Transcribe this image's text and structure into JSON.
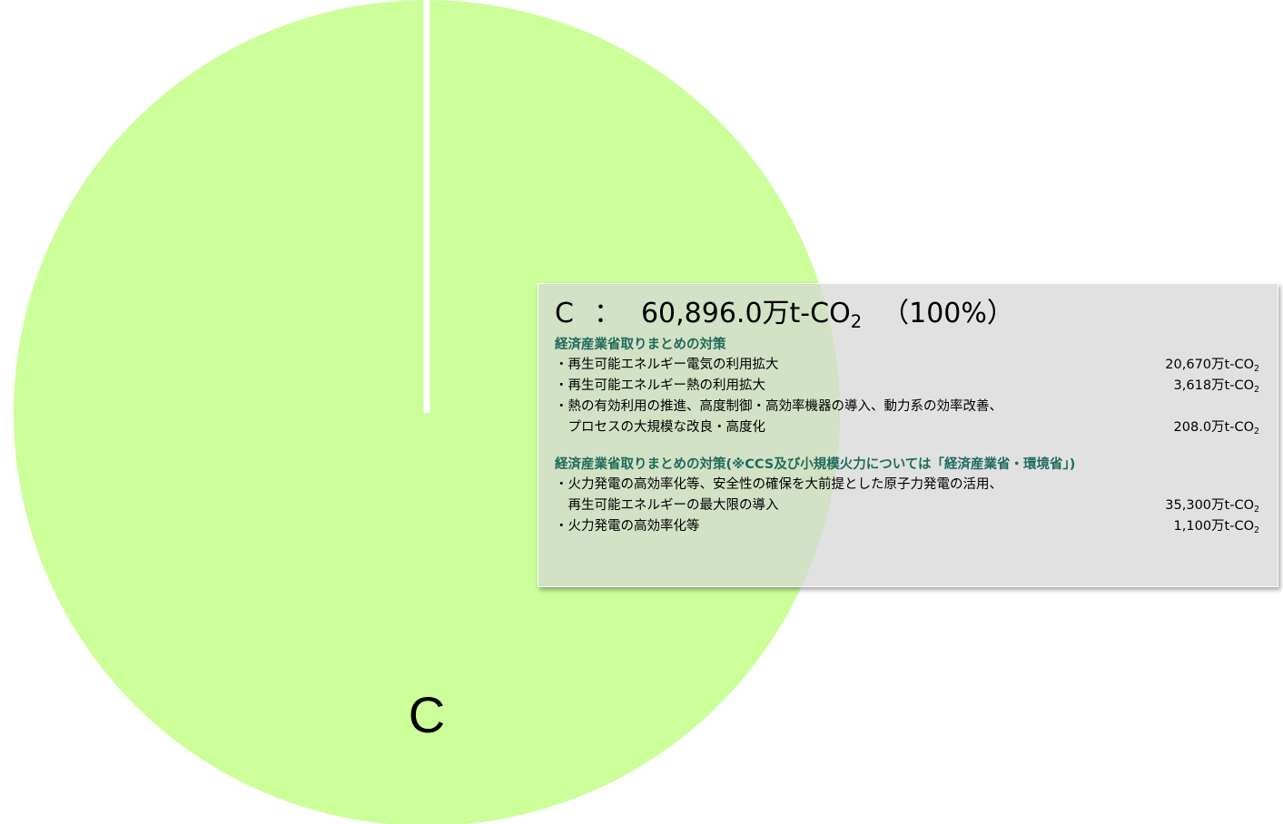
{
  "chart_data": {
    "type": "pie",
    "categories": [
      "C"
    ],
    "values": [
      100
    ],
    "colors": [
      "#ccff99"
    ],
    "separator_color": "#ffffff"
  },
  "tooltip": {
    "category": "C",
    "separator": "：",
    "value_text": "60,896.0万t-CO",
    "value_sub": "2",
    "percent": "（100%）",
    "sections": [
      {
        "title": "経済産業省取りまとめの対策",
        "rows": [
          {
            "lines": [
              "・再生可能エネルギー電気の利用拡大"
            ],
            "value": "20,670万t-CO",
            "sub": "2"
          },
          {
            "lines": [
              "・再生可能エネルギー熱の利用拡大"
            ],
            "value": "3,618万t-CO",
            "sub": "2"
          },
          {
            "lines": [
              "・熱の有効利用の推進、高度制御・高効率機器の導入、動力系の効率改善、",
              "　プロセスの大規模な改良・高度化"
            ],
            "value": "208.0万t-CO",
            "sub": "2"
          }
        ]
      },
      {
        "title": "経済産業省取りまとめの対策(※CCS及び小規模火力については「経済産業省・環境省」)",
        "rows": [
          {
            "lines": [
              "・火力発電の高効率化等、安全性の確保を大前提とした原子力発電の活用、",
              "　再生可能エネルギーの最大限の導入"
            ],
            "value": "35,300万t-CO",
            "sub": "2"
          },
          {
            "lines": [
              "・火力発電の高効率化等"
            ],
            "value": "1,100万t-CO",
            "sub": "2"
          }
        ]
      }
    ]
  }
}
